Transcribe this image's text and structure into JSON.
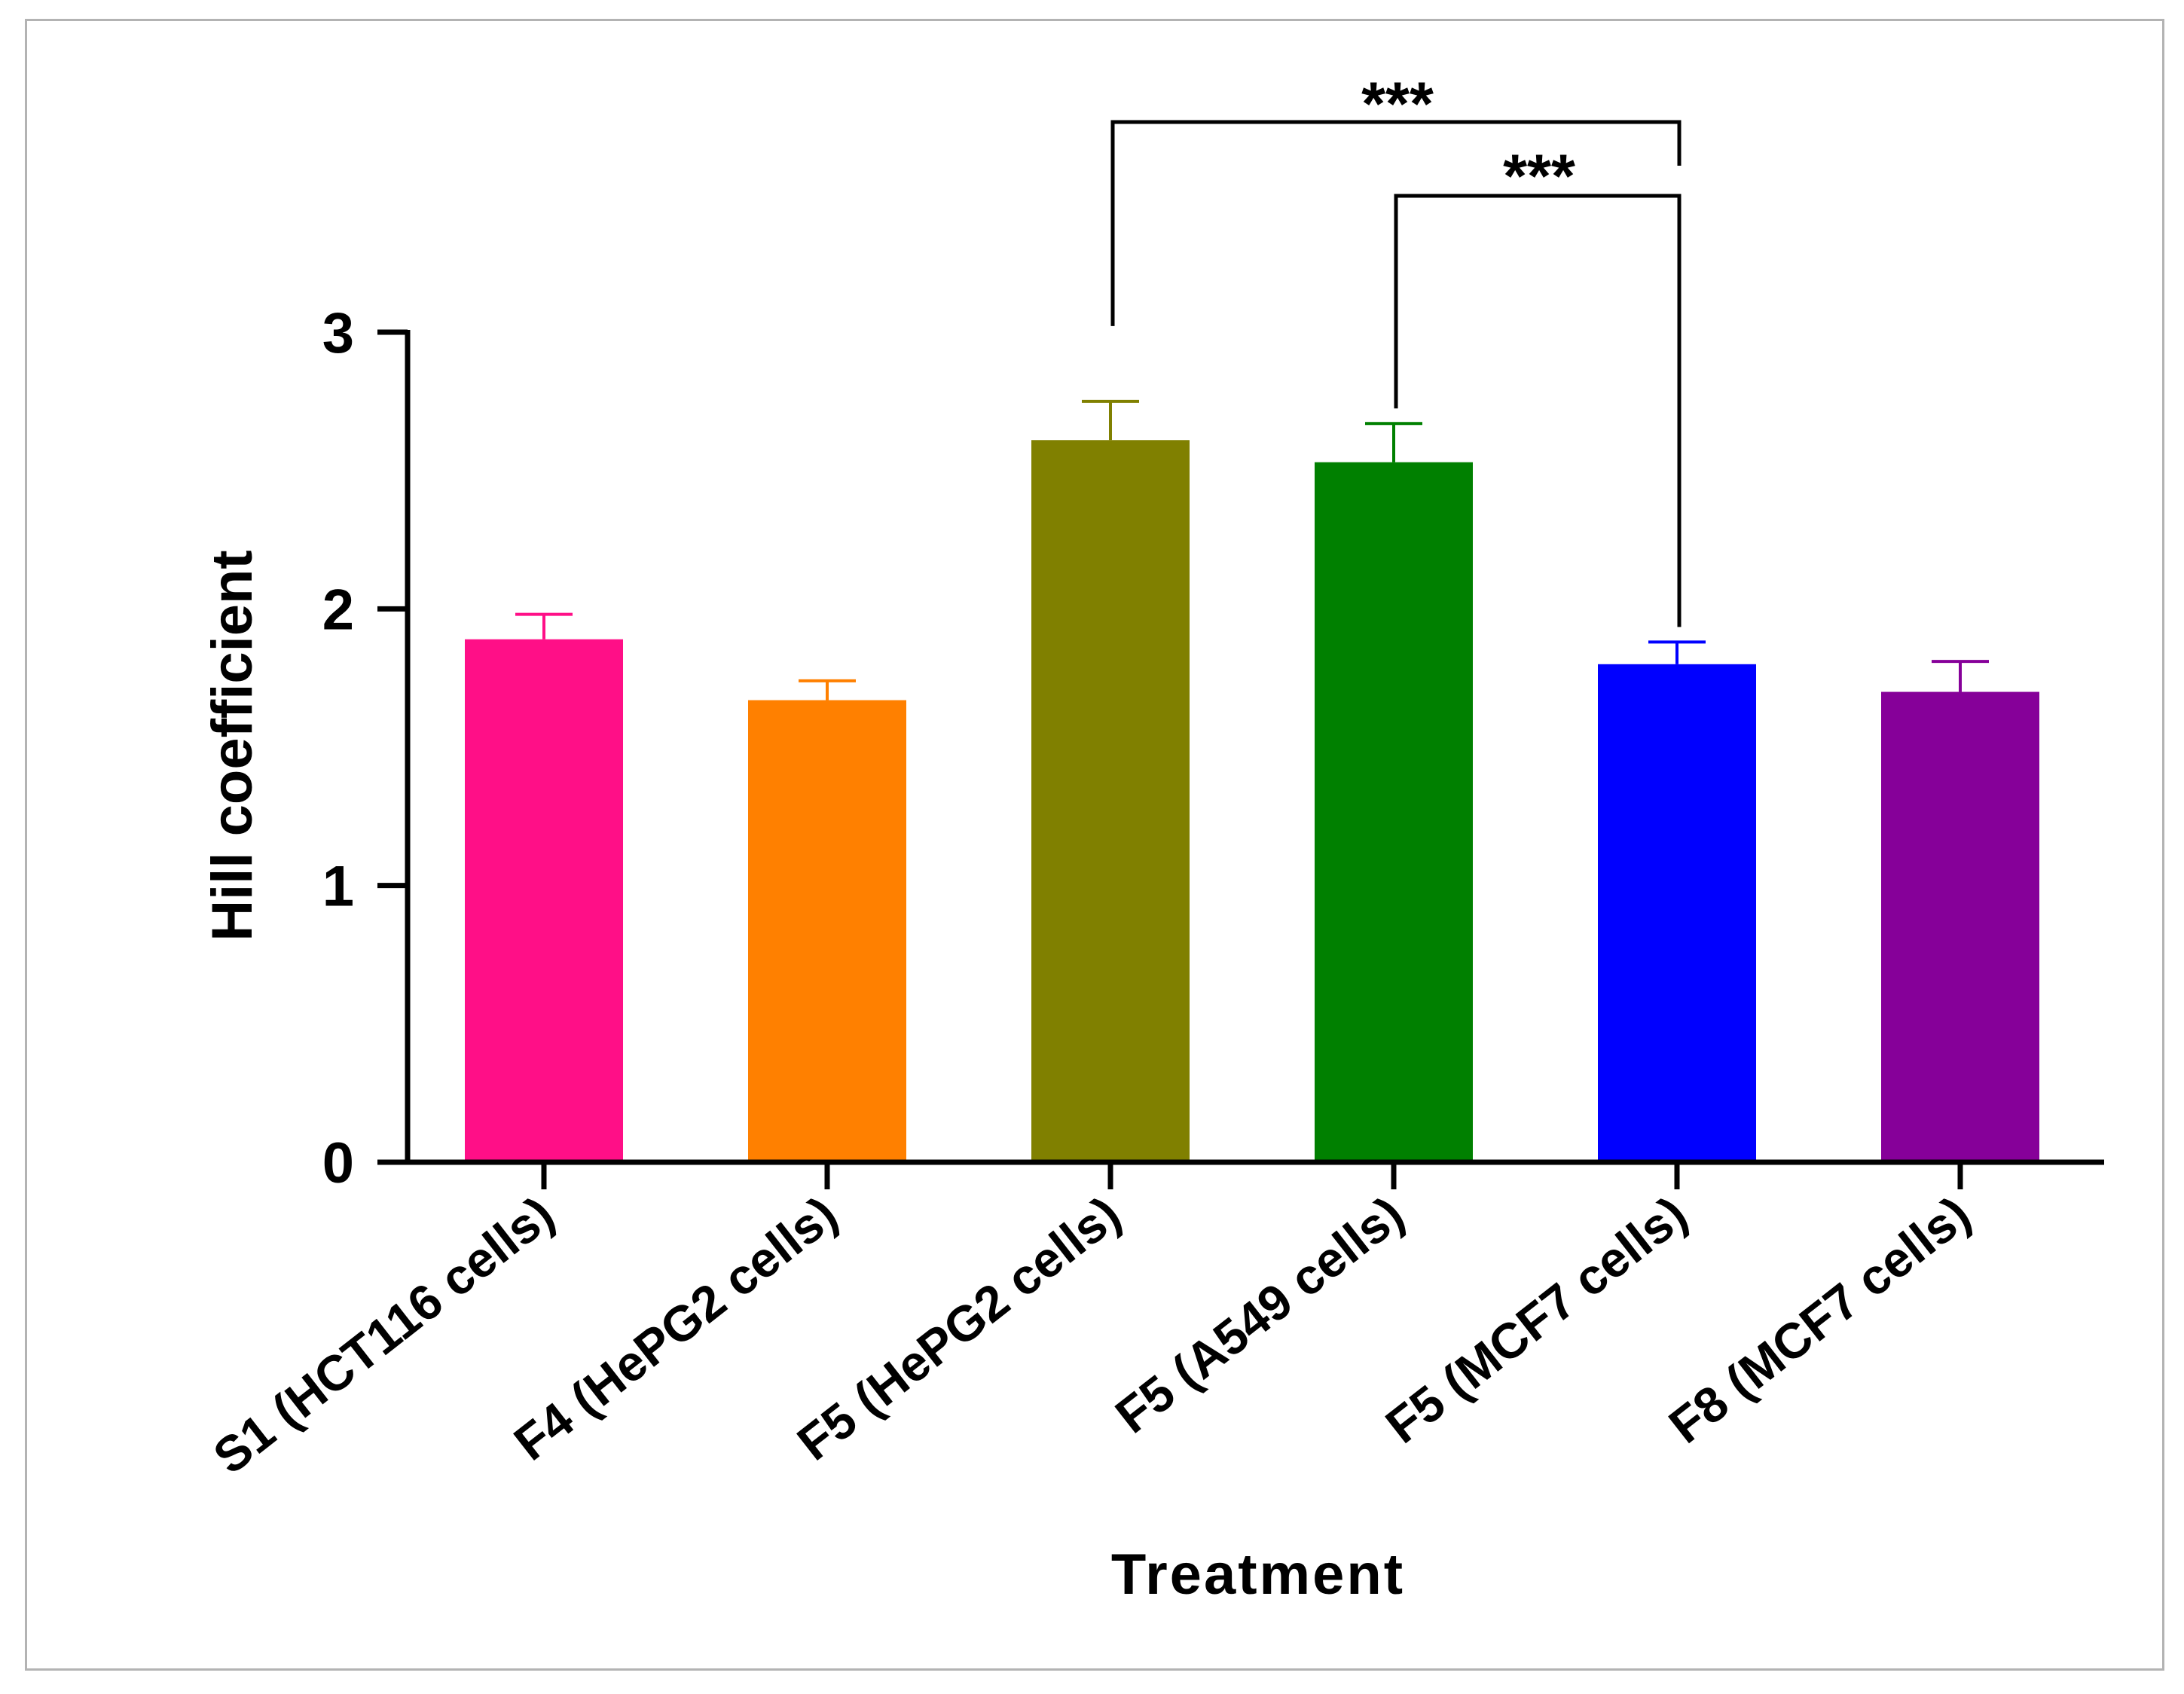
{
  "chart_data": {
    "type": "bar",
    "title": "",
    "xlabel": "Treatment",
    "ylabel": "Hill coefficient",
    "ylim": [
      0,
      3
    ],
    "yticks": [
      "0",
      "1",
      "2",
      "3"
    ],
    "categories": [
      "S1 (HCT116 cells)",
      "F4 (HePG2 cells)",
      "F5 (HePG2 cells)",
      "F5 (A549 cells)",
      "F5 (MCF7 cells)",
      "F8 (MCF7 cells)"
    ],
    "values": [
      1.89,
      1.67,
      2.61,
      2.53,
      1.8,
      1.7
    ],
    "errors": [
      0.09,
      0.07,
      0.14,
      0.14,
      0.08,
      0.11
    ],
    "colors": [
      "#ff0f87",
      "#ff8000",
      "#808000",
      "#008000",
      "#0000ff",
      "#860099"
    ],
    "significance": [
      {
        "from": 2,
        "to": 4,
        "label": "***"
      },
      {
        "from": 3,
        "to": 4,
        "label": "***"
      }
    ]
  }
}
